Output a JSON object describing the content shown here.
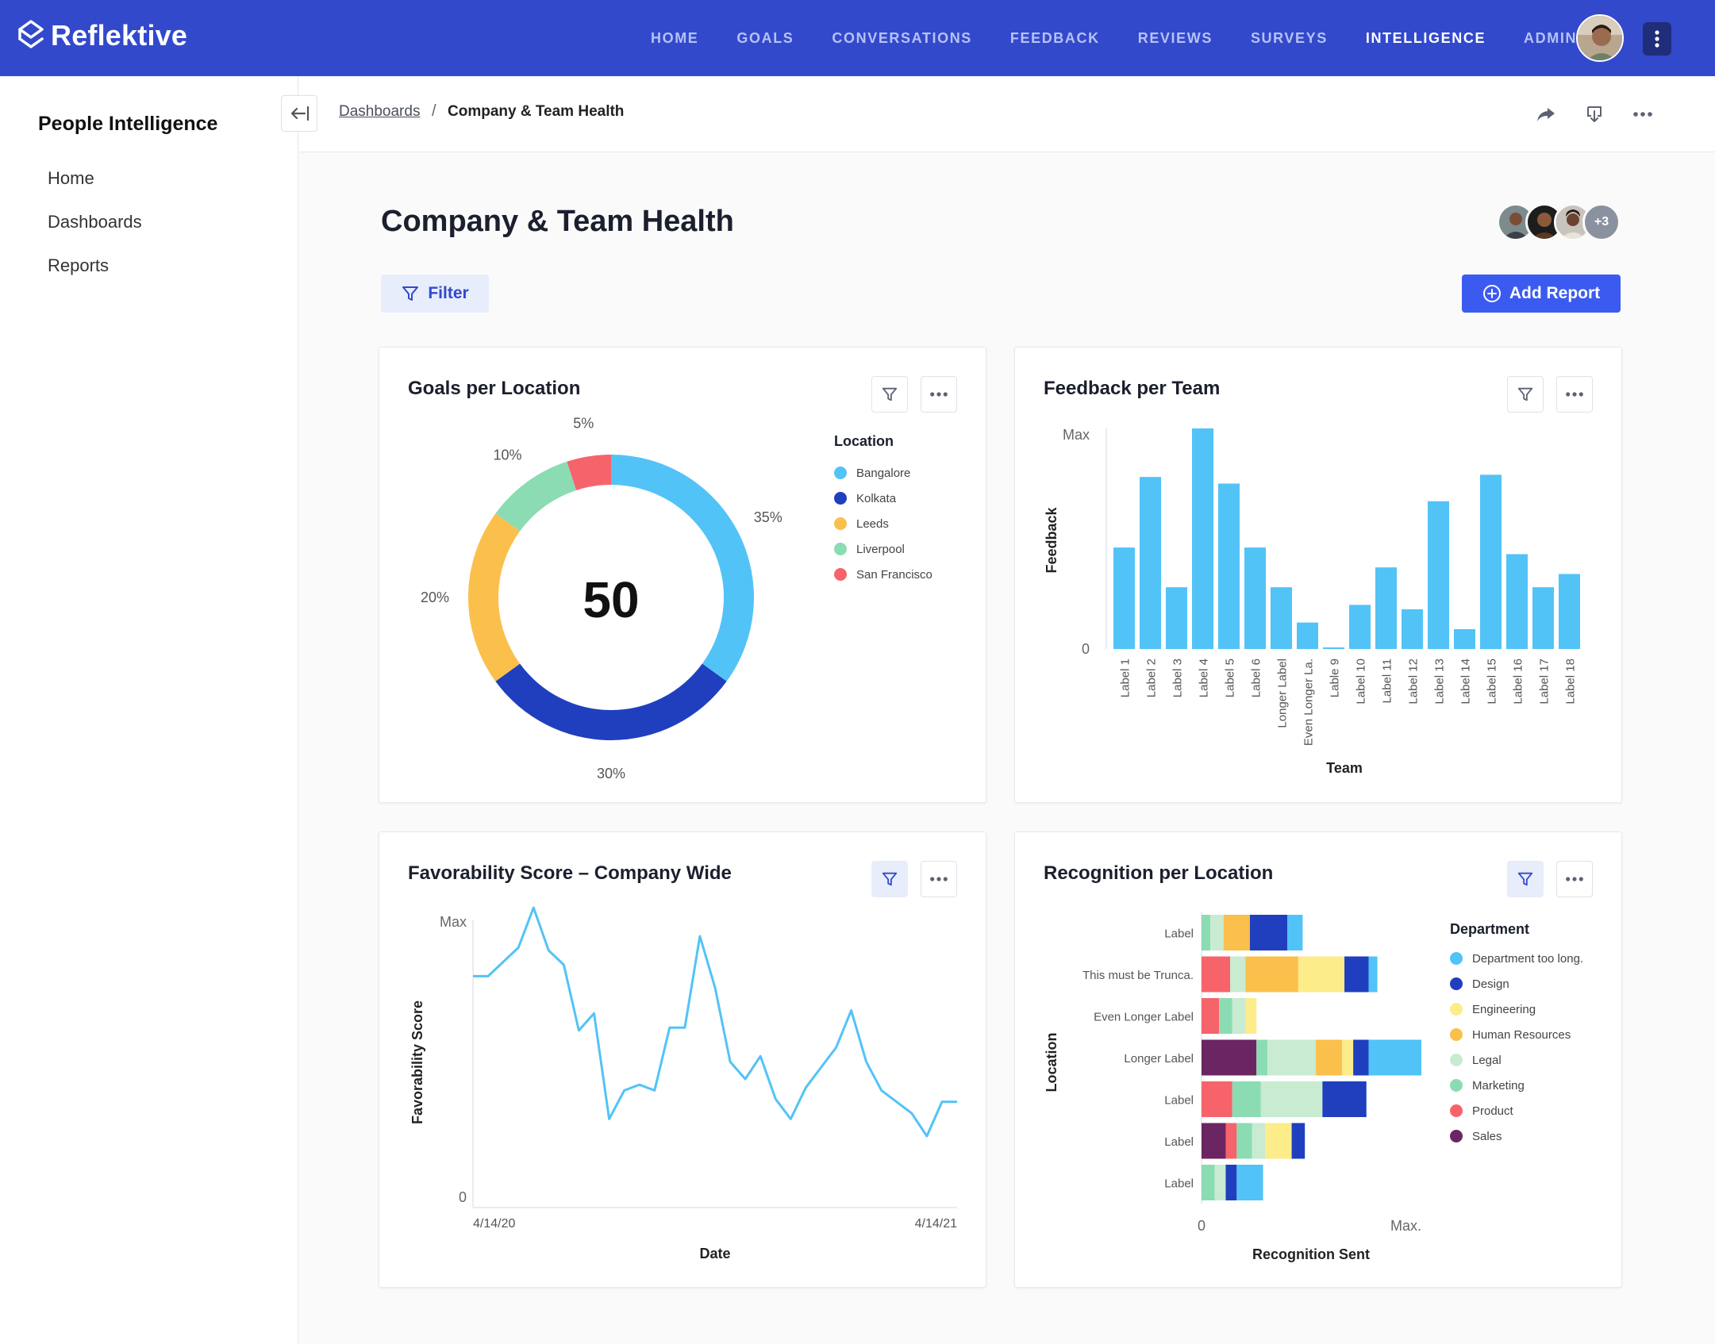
{
  "app": {
    "name": "Reflektive"
  },
  "nav": {
    "items": [
      {
        "label": "HOME",
        "active": false
      },
      {
        "label": "GOALS",
        "active": false
      },
      {
        "label": "CONVERSATIONS",
        "active": false
      },
      {
        "label": "FEEDBACK",
        "active": false
      },
      {
        "label": "REVIEWS",
        "active": false
      },
      {
        "label": "SURVEYS",
        "active": false
      },
      {
        "label": "INTELLIGENCE",
        "active": true
      },
      {
        "label": "ADMIN",
        "active": false
      }
    ]
  },
  "sidebar": {
    "title": "People Intelligence",
    "items": [
      {
        "label": "Home",
        "active": true
      },
      {
        "label": "Dashboards",
        "active": false
      },
      {
        "label": "Reports",
        "active": false
      }
    ]
  },
  "breadcrumb": {
    "parent": "Dashboards",
    "separator": "/",
    "current": "Company & Team Health"
  },
  "page": {
    "title": "Company & Team Health",
    "collaborators_more": "+3",
    "filter_label": "Filter",
    "add_report_label": "Add Report"
  },
  "colors": {
    "primary": "#3349cc",
    "accent": "#3b5bf0",
    "series_blue": "#52c3f7"
  },
  "cards": {
    "goals": {
      "title": "Goals per Location"
    },
    "feedback": {
      "title": "Feedback per Team"
    },
    "favorability": {
      "title": "Favorability Score – Company Wide"
    },
    "recognition": {
      "title": "Recognition per Location"
    }
  },
  "chart_data": [
    {
      "id": "goals",
      "type": "pie",
      "title": "Goals per Location",
      "center_value": "50",
      "legend_title": "Location",
      "legend_placement": "right",
      "slices": [
        {
          "label": "Bangalore",
          "value": 35,
          "display": "35%",
          "color": "#52c3f7"
        },
        {
          "label": "Kolkata",
          "value": 30,
          "display": "30%",
          "color": "#1f3fbf"
        },
        {
          "label": "Leeds",
          "value": 20,
          "display": "20%",
          "color": "#fbbf4c"
        },
        {
          "label": "Liverpool",
          "value": 10,
          "display": "10%",
          "color": "#8bdcb3"
        },
        {
          "label": "San Francisco",
          "value": 5,
          "display": "5%",
          "color": "#f7636a"
        }
      ]
    },
    {
      "id": "feedback",
      "type": "bar",
      "title": "Feedback per Team",
      "xlabel": "Team",
      "ylabel": "Feedback",
      "y_tick_labels": [
        "0",
        "Max"
      ],
      "ylim": [
        0,
        100
      ],
      "color": "#52c3f7",
      "categories": [
        "Label 1",
        "Label 2",
        "Label 3",
        "Label 4",
        "Label 5",
        "Label 6",
        "Longer Label",
        "Even Longer La.",
        "Lable 9",
        "Label 10",
        "Label 11",
        "Label 12",
        "Label 13",
        "Label 14",
        "Label 15",
        "Label 16",
        "Label 17",
        "Label 18"
      ],
      "values": [
        46,
        78,
        28,
        100,
        75,
        46,
        28,
        12,
        0,
        20,
        37,
        18,
        67,
        9,
        79,
        43,
        28,
        34
      ]
    },
    {
      "id": "favorability",
      "type": "line",
      "title": "Favorability Score – Company Wide",
      "xlabel": "Date",
      "ylabel": "Favorability Score",
      "y_tick_labels": [
        "0",
        "Max"
      ],
      "x_tick_labels": [
        "4/14/20",
        "4/14/21"
      ],
      "ylim": [
        0,
        100
      ],
      "color": "#52c3f7",
      "values": [
        81,
        81,
        86,
        91,
        105,
        90,
        85,
        62,
        68,
        31,
        41,
        43,
        41,
        63,
        63,
        95,
        77,
        51,
        45,
        53,
        38,
        31,
        42,
        49,
        56,
        69,
        51,
        41,
        37,
        33,
        25,
        37,
        37
      ]
    },
    {
      "id": "recognition",
      "type": "bar",
      "orientation": "horizontal",
      "stacked": true,
      "title": "Recognition per Location",
      "xlabel": "Recognition Sent",
      "ylabel": "Location",
      "x_tick_labels": [
        "0",
        "Max."
      ],
      "xlim": [
        0,
        100
      ],
      "legend_title": "Department",
      "legend_placement": "right",
      "categories": [
        "Label",
        "This must be Trunca.",
        "Even Longer Label",
        "Longer Label",
        "Label",
        "Label",
        "Label"
      ],
      "series": [
        {
          "name": "Sales",
          "color": "#6b2562",
          "values": [
            0,
            0,
            0,
            25,
            0,
            11,
            0
          ]
        },
        {
          "name": "Product",
          "color": "#f7636a",
          "values": [
            0,
            13,
            8,
            0,
            14,
            5,
            0
          ]
        },
        {
          "name": "Marketing",
          "color": "#8bdcb3",
          "values": [
            4,
            0,
            6,
            5,
            13,
            7,
            6
          ]
        },
        {
          "name": "Legal",
          "color": "#c8ebd2",
          "values": [
            6,
            7,
            6,
            22,
            28,
            6,
            5
          ]
        },
        {
          "name": "Human Resources",
          "color": "#fbbf4c",
          "values": [
            12,
            24,
            0,
            12,
            0,
            0,
            0
          ]
        },
        {
          "name": "Engineering",
          "color": "#fdec8a",
          "values": [
            0,
            21,
            5,
            5,
            0,
            12,
            0
          ]
        },
        {
          "name": "Design",
          "color": "#1f3fbf",
          "values": [
            17,
            11,
            0,
            7,
            20,
            6,
            5
          ]
        },
        {
          "name": "Department too long.",
          "color": "#52c3f7",
          "values": [
            7,
            4,
            0,
            24,
            0,
            0,
            12
          ]
        }
      ]
    }
  ]
}
